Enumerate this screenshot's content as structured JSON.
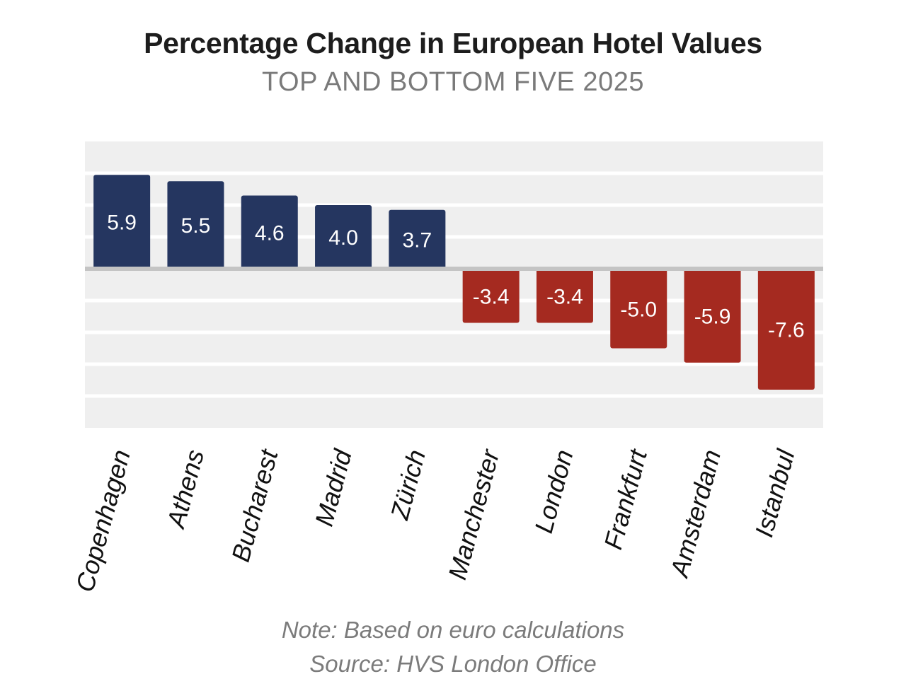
{
  "chart_data": {
    "type": "bar",
    "title": "Percentage Change in European Hotel Values",
    "subtitle": "TOP AND BOTTOM FIVE 2025",
    "categories": [
      "Copenhagen",
      "Athens",
      "Bucharest",
      "Madrid",
      "Zürich",
      "Manchester",
      "London",
      "Frankfurt",
      "Amsterdam",
      "Istanbul"
    ],
    "values": [
      5.9,
      5.5,
      4.6,
      4.0,
      3.7,
      -3.4,
      -3.4,
      -5.0,
      -5.9,
      -7.6
    ],
    "value_labels": [
      "5.9",
      "5.5",
      "4.6",
      "4.0",
      "3.7",
      "-3.4",
      "-3.4",
      "-5.0",
      "-5.9",
      "-7.6"
    ],
    "ylim": [
      -10,
      8
    ],
    "xlabel": "",
    "ylabel": "",
    "grid": true,
    "colors": {
      "positive": "#253660",
      "negative": "#a52a20",
      "band": "#efefef",
      "zero_line": "#c4c4c4"
    }
  },
  "notes": {
    "note": "Note: Based on euro calculations",
    "source": "Source: HVS London Office"
  }
}
